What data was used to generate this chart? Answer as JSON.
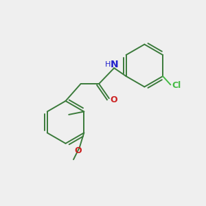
{
  "background_color": "#efefef",
  "bond_color": "#3a7a3a",
  "N_color": "#2222cc",
  "O_color": "#cc2222",
  "Cl_color": "#44bb44",
  "line_width": 1.4,
  "figsize": [
    3.0,
    3.0
  ],
  "dpi": 100,
  "xlim": [
    0,
    10
  ],
  "ylim": [
    0,
    10
  ]
}
